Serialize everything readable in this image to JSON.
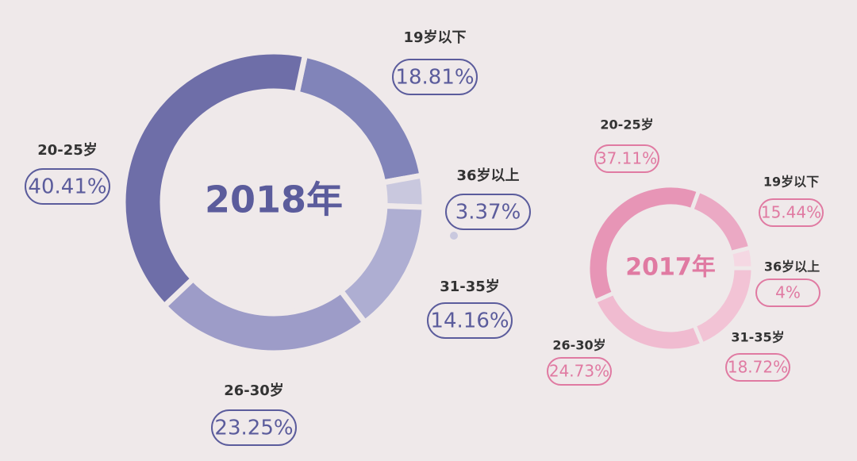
{
  "chart_data": [
    {
      "type": "pie",
      "title": "2018年",
      "categories": [
        "19岁以下",
        "36岁以上",
        "31-35岁",
        "26-30岁",
        "20-25岁"
      ],
      "values": [
        18.81,
        3.37,
        14.16,
        23.25,
        40.41
      ],
      "value_labels": [
        "18.81%",
        "3.37%",
        "14.16%",
        "23.25%",
        "40.41%"
      ],
      "colors": [
        "#8184b9",
        "#c9c8de",
        "#aeaed2",
        "#9d9cc8",
        "#6e6ea8"
      ],
      "color": "#5b5c9c"
    },
    {
      "type": "pie",
      "title": "2017年",
      "categories": [
        "19岁以下",
        "36岁以上",
        "31-35岁",
        "26-30岁",
        "20-25岁"
      ],
      "values": [
        15.44,
        4,
        18.72,
        24.73,
        37.11
      ],
      "value_labels": [
        "15.44%",
        "4%",
        "18.72%",
        "24.73%",
        "37.11%"
      ],
      "colors": [
        "#eba9c4",
        "#f5d8e3",
        "#f2c3d5",
        "#f0bbd0",
        "#e795b6"
      ],
      "color": "#e07aa2"
    }
  ]
}
